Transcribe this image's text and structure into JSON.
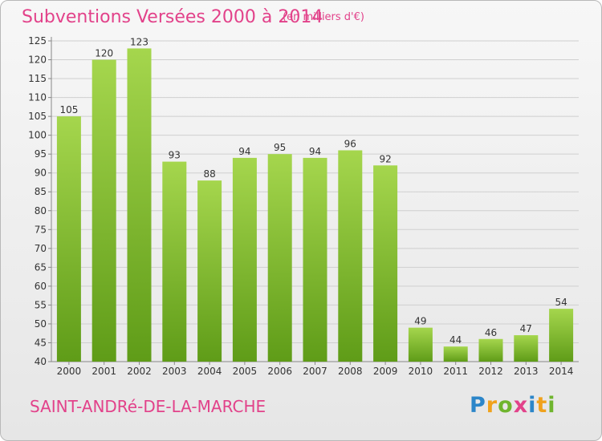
{
  "header": {
    "title": "Subventions Versées 2000 à 2014",
    "subtitle": "(en milliers d'€)"
  },
  "footer": {
    "commune": "SAINT-ANDRé-DE-LA-MARCHE",
    "logo": {
      "letters": [
        "P",
        "r",
        "o",
        "x",
        "i",
        "t",
        "i"
      ],
      "colors": [
        "#2c86c9",
        "#f0a21c",
        "#6fb52e",
        "#e2428a",
        "#2c86c9",
        "#f0a21c",
        "#6fb52e"
      ]
    }
  },
  "colors": {
    "title": "#e2428a",
    "bar_top": "#a5d64d",
    "bar_bottom": "#5f9c18",
    "grid": "#cfcfcf"
  },
  "chart_data": {
    "type": "bar",
    "title": "Subventions Versées 2000 à 2014",
    "subtitle": "(en milliers d'€)",
    "xlabel": "",
    "ylabel": "",
    "categories": [
      "2000",
      "2001",
      "2002",
      "2003",
      "2004",
      "2005",
      "2006",
      "2007",
      "2008",
      "2009",
      "2010",
      "2011",
      "2012",
      "2013",
      "2014"
    ],
    "values": [
      105,
      120,
      123,
      93,
      88,
      94,
      95,
      94,
      96,
      92,
      49,
      44,
      46,
      47,
      54
    ],
    "ylim": [
      40,
      125
    ],
    "yticks": [
      40,
      45,
      50,
      55,
      60,
      65,
      70,
      75,
      80,
      85,
      90,
      95,
      100,
      105,
      110,
      115,
      120,
      125
    ],
    "grid": "horizontal",
    "data_labels": true
  }
}
